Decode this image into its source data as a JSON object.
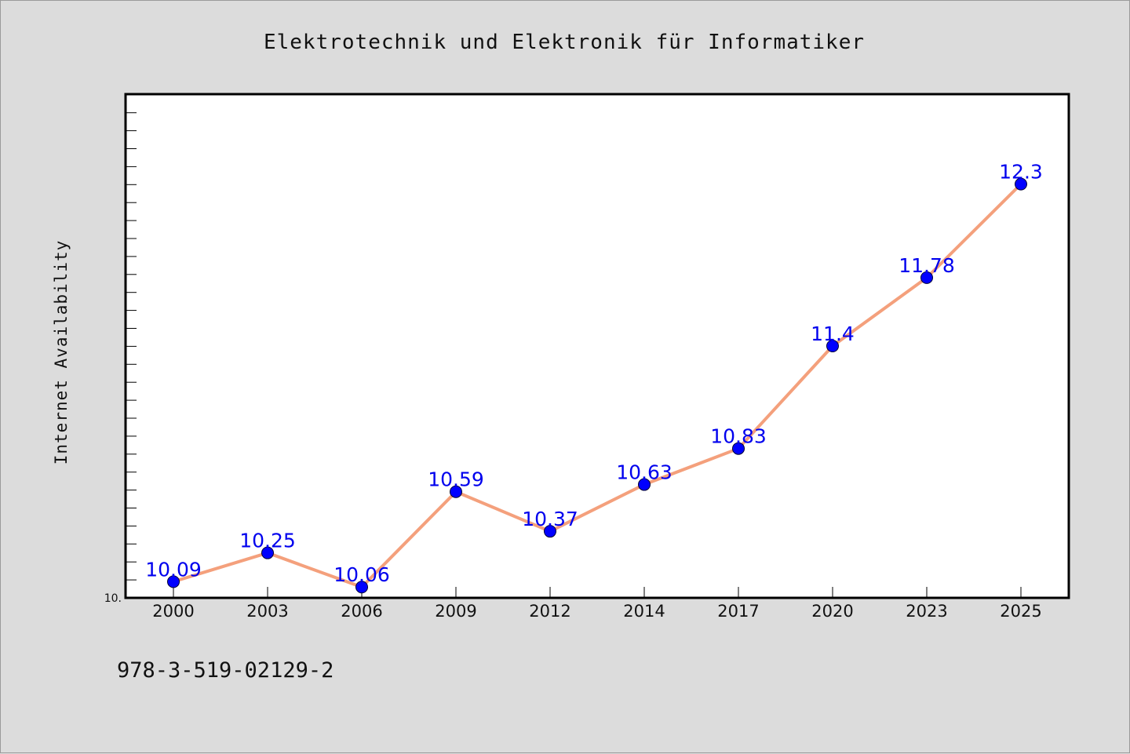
{
  "chart_data": {
    "type": "line",
    "title": "Elektrotechnik und Elektronik für Informatiker",
    "xlabel": "",
    "ylabel": "Internet Availability",
    "categories": [
      "2000",
      "2003",
      "2006",
      "2009",
      "2012",
      "2014",
      "2017",
      "2020",
      "2023",
      "2025"
    ],
    "series": [
      {
        "values": [
          10.09,
          10.25,
          10.06,
          10.59,
          10.37,
          10.63,
          10.83,
          11.4,
          11.78,
          12.3
        ],
        "labels": [
          "10.09",
          "10.25",
          "10.06",
          "10.59",
          "10.37",
          "10.63",
          "10.83",
          "11.4",
          "11.78",
          "12.3"
        ]
      }
    ],
    "ylim": [
      10.0,
      12.8
    ],
    "ytick_labels": [
      "10."
    ],
    "grid": false,
    "legend": "none",
    "line_color": "#f4a07c",
    "marker_color": "#0000ff",
    "label_color": "#0000ee"
  },
  "footer": {
    "text": "978-3-519-02129-2"
  },
  "colors": {
    "background": "#dcdcdc",
    "plot_background": "#ffffff"
  }
}
